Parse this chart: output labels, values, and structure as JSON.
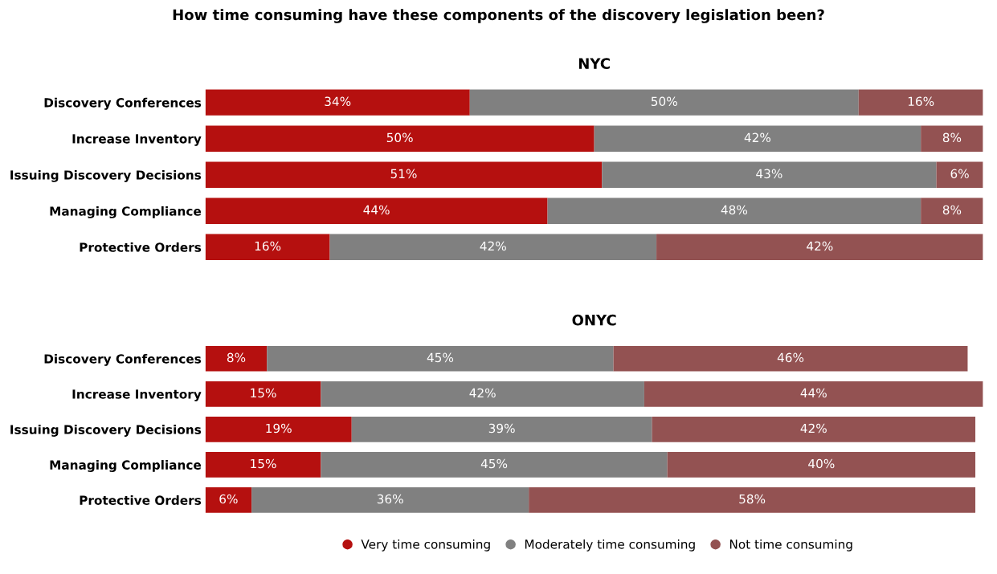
{
  "chart_data": [
    {
      "type": "bar",
      "orientation": "horizontal",
      "stacked": true,
      "title": "How time consuming have these components of the discovery legislation been?",
      "subtitle": "NYC",
      "categories": [
        "Discovery Conferences",
        "Increase Inventory",
        "Issuing Discovery Decisions",
        "Managing Compliance",
        "Protective Orders"
      ],
      "series": [
        {
          "color": "#b5100f",
          "values": [
            34,
            50,
            51,
            44,
            16
          ],
          "value_labels": [
            "34%",
            "50%",
            "51%",
            "44%",
            "16%"
          ]
        },
        {
          "color": "#808080",
          "values": [
            50,
            42,
            43,
            48,
            42
          ],
          "value_labels": [
            "50%",
            "42%",
            "43%",
            "48%",
            "42%"
          ]
        },
        {
          "color": "#935252",
          "values": [
            16,
            8,
            6,
            8,
            42
          ],
          "value_labels": [
            "16%",
            "8%",
            "6%",
            "8%",
            "42%"
          ]
        }
      ],
      "grid": false,
      "legend": false,
      "tick_labels": "y"
    },
    {
      "type": "bar",
      "orientation": "horizontal",
      "stacked": true,
      "title": "ONYC",
      "categories": [
        "Discovery Conferences",
        "Increase Inventory",
        "Issuing Discovery Decisions",
        "Managing Compliance",
        "Protective Orders"
      ],
      "series": [
        {
          "name": "Very time consuming",
          "color": "#b5100f",
          "values": [
            8,
            15,
            19,
            15,
            6
          ],
          "value_labels": [
            "8%",
            "15%",
            "19%",
            "15%",
            "6%"
          ]
        },
        {
          "name": "Moderately time consuming",
          "color": "#808080",
          "values": [
            45,
            42,
            39,
            45,
            36
          ],
          "value_labels": [
            "45%",
            "42%",
            "39%",
            "45%",
            "36%"
          ]
        },
        {
          "name": "Not time consuming",
          "color": "#935252",
          "values": [
            46,
            44,
            42,
            40,
            58
          ],
          "value_labels": [
            "46%",
            "44%",
            "42%",
            "40%",
            "58%"
          ]
        }
      ],
      "grid": false,
      "legend": "bottom",
      "tick_labels": "y"
    }
  ]
}
